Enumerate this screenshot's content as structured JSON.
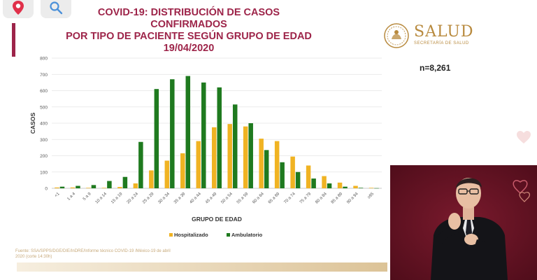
{
  "header": {
    "title_line1": "COVID-19: DISTRIBUCIÓN DE CASOS",
    "title_line2": "CONFIRMADOS",
    "title_line3": "POR TIPO DE PACIENTE SEGÚN GRUPO DE EDAD",
    "title_line4": "19/04/2020"
  },
  "logo": {
    "word": "SALUD",
    "sub": "SECRETARÍA DE SALUD"
  },
  "sample_size": "n=8,261",
  "footnote": {
    "line1": "Fuente: SSA/SPPS/DGE/DIE/InDRE/Informe técnico COVID-19 /México-19 de abril",
    "line2": "2020 (corte 14:30h)"
  },
  "colors": {
    "accent": "#9d2449",
    "hospitalizado": "#f0b323",
    "ambulatorio": "#1f7a1f",
    "logo_gold": "#b88a3e"
  },
  "icons": {
    "pin": "location-pin-icon",
    "search": "search-icon"
  },
  "chart_data": {
    "type": "bar",
    "title": "",
    "xlabel": "GRUPO DE EDAD",
    "ylabel": "CASOS",
    "ylim": [
      0,
      800
    ],
    "yticks": [
      0,
      100,
      200,
      300,
      400,
      500,
      600,
      700,
      800
    ],
    "grid": true,
    "legend": "bottom",
    "categories": [
      "<1",
      "1 a 4",
      "5 a 9",
      "10 a 14",
      "15 a 19",
      "20 a 24",
      "25 a 29",
      "30 a 34",
      "35 a 39",
      "40 a 44",
      "45 a 49",
      "50 a 54",
      "55 a 59",
      "60 a 64",
      "65 a 69",
      "70 a 74",
      "75 a 79",
      "80 a 84",
      "85 a 89",
      "90 a 94",
      "≥95"
    ],
    "series": [
      {
        "name": "Hospitalizado",
        "values": [
          5,
          5,
          3,
          3,
          8,
          30,
          110,
          170,
          215,
          290,
          375,
          395,
          380,
          305,
          290,
          195,
          140,
          75,
          35,
          15,
          3
        ]
      },
      {
        "name": "Ambulatorio",
        "values": [
          10,
          15,
          20,
          45,
          70,
          285,
          610,
          670,
          690,
          650,
          620,
          515,
          400,
          235,
          160,
          100,
          60,
          30,
          10,
          3,
          1
        ]
      }
    ]
  }
}
